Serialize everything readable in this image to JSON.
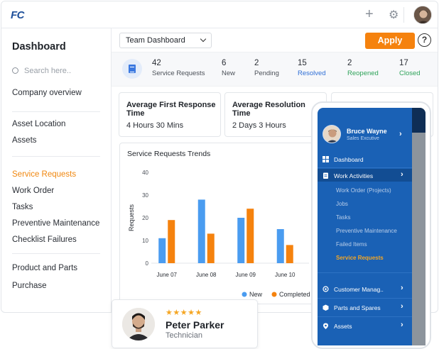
{
  "app": {
    "logo": "FC"
  },
  "topbar": {
    "add_icon": "plus-icon",
    "settings_icon": "gear-icon",
    "avatar_icon": "user-avatar"
  },
  "sidebar": {
    "title": "Dashboard",
    "search_placeholder": "Search here..",
    "groups": [
      {
        "items": [
          {
            "label": "Company overview"
          }
        ]
      },
      {
        "items": [
          {
            "label": "Asset Location"
          },
          {
            "label": "Assets"
          }
        ]
      },
      {
        "items": [
          {
            "label": "Service Requests",
            "active": true
          },
          {
            "label": "Work Order"
          },
          {
            "label": "Tasks"
          },
          {
            "label": "Preventive Maintenance"
          },
          {
            "label": "Checklist Failures"
          }
        ]
      },
      {
        "items": [
          {
            "label": "Product and Parts"
          },
          {
            "label": "Purchase"
          }
        ]
      }
    ]
  },
  "toolbar": {
    "dashboard_select": "Team Dashboard",
    "apply_label": "Apply",
    "help_label": "?"
  },
  "stats": [
    {
      "value": "42",
      "label": "Service Requests",
      "color": "#4b5058"
    },
    {
      "value": "6",
      "label": "New",
      "color": "#4b5058"
    },
    {
      "value": "2",
      "label": "Pending",
      "color": "#4b5058"
    },
    {
      "value": "15",
      "label": "Resolved",
      "color": "#2f6fd6"
    },
    {
      "value": "2",
      "label": "Reopened",
      "color": "#2fa35a"
    },
    {
      "value": "17",
      "label": "Closed",
      "color": "#2fa35a"
    }
  ],
  "cards": [
    {
      "title": "Average First Response Time",
      "value": "4 Hours 30 Mins"
    },
    {
      "title": "Average Resolution Time",
      "value": "2 Days 3 Hours"
    }
  ],
  "chart_data": {
    "type": "bar",
    "title": "Service Requests Trends",
    "ylabel": "Requests",
    "xlabel": "",
    "ylim": [
      0,
      40
    ],
    "yticks": [
      0,
      10,
      20,
      30,
      40
    ],
    "categories": [
      "June 07",
      "June 08",
      "June 09",
      "June 10"
    ],
    "series": [
      {
        "name": "New",
        "color": "#4a9cf0",
        "values": [
          11,
          28,
          20,
          15
        ]
      },
      {
        "name": "Completed",
        "color": "#f5820e",
        "values": [
          19,
          13,
          24,
          8
        ]
      }
    ],
    "legend": "bottom"
  },
  "person": {
    "stars": "★★★★★",
    "name": "Peter Parker",
    "role": "Technician"
  },
  "mobile": {
    "user_name": "Bruce Wayne",
    "user_role": "Sales Excutive",
    "menu": {
      "dashboard": "Dashboard",
      "work_activities": "Work Activities",
      "subitems": [
        "Work Order (Projects)",
        "Jobs",
        "Tasks",
        "Preventive Maintenance",
        "Failed Items",
        "Service Requests"
      ],
      "customer": "Customer Manag..",
      "parts": "Parts and Spares",
      "assets": "Assets"
    }
  }
}
